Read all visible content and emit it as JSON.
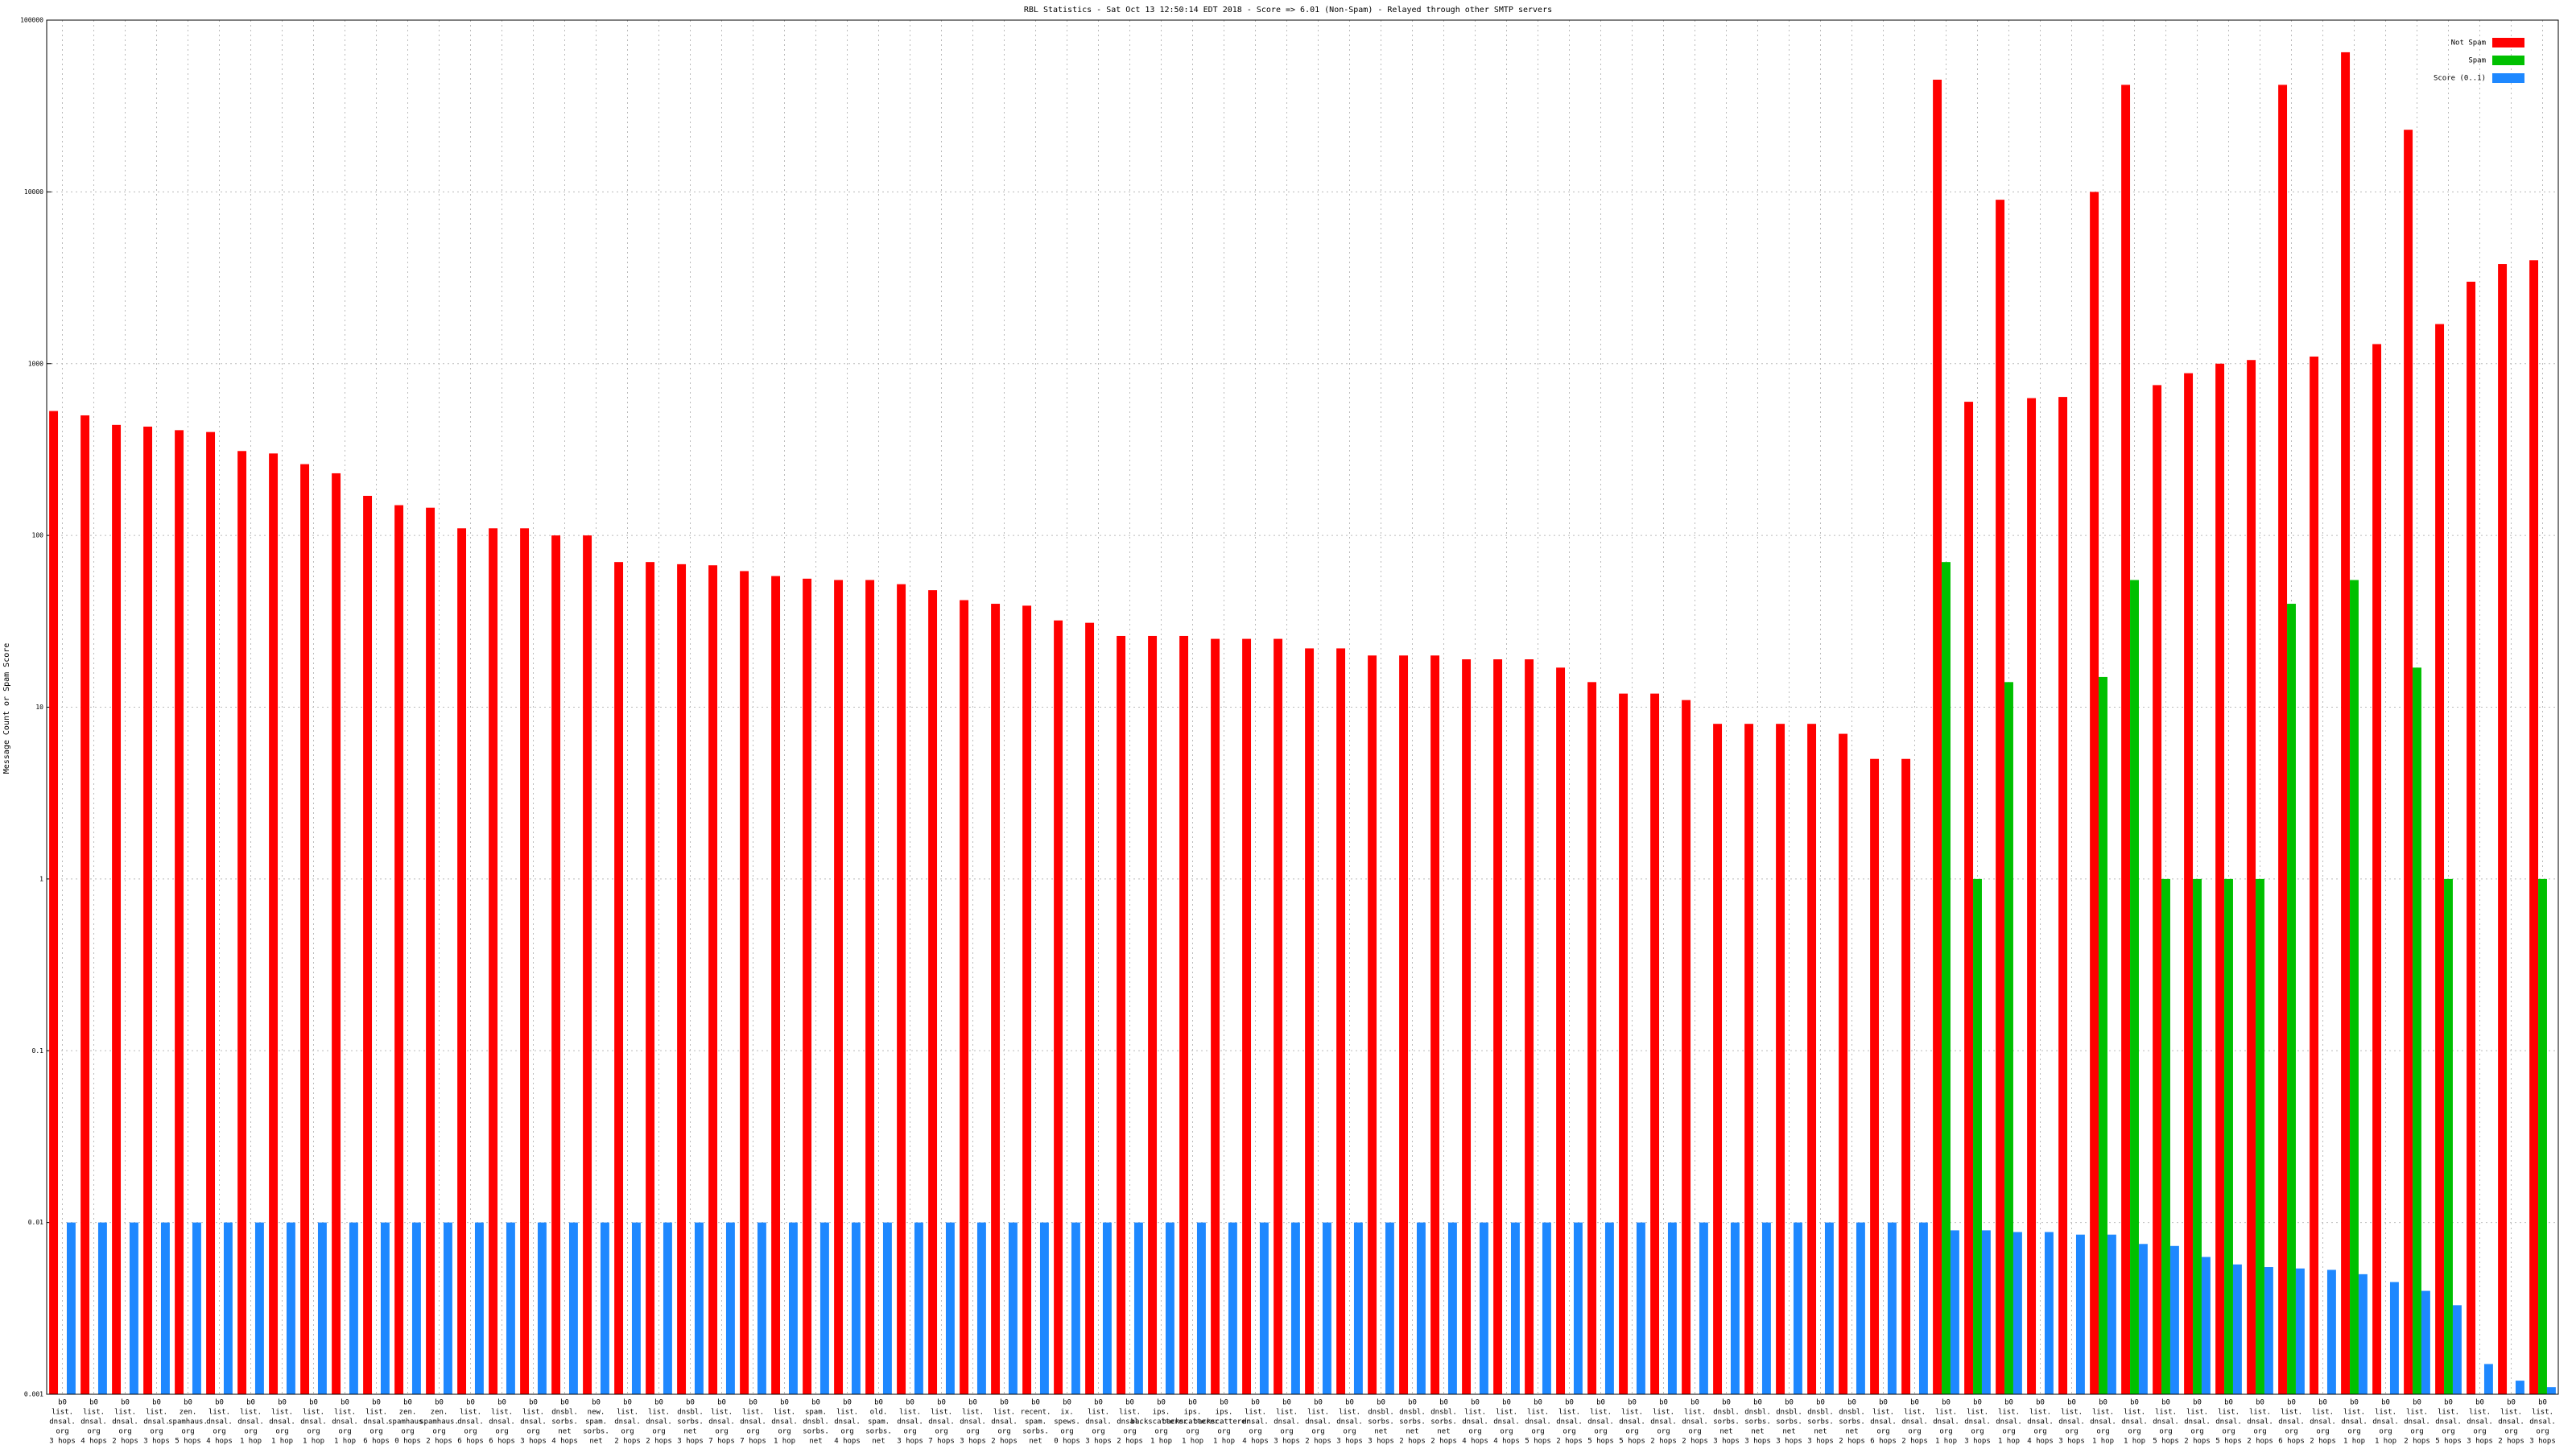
{
  "chart_data": {
    "type": "bar",
    "title": "RBL Statistics - Sat Oct 13 12:50:14 EDT 2018 - Score => 6.01 (Non-Spam) - Relayed through other SMTP servers",
    "y_label": "Message Count or Spam Score",
    "log_scale": true,
    "grid": true,
    "legend": "top-right",
    "ylim": [
      0.001,
      100000
    ],
    "yticks": [
      0.001,
      0.01,
      0.1,
      1,
      10,
      100,
      1000,
      10000,
      100000
    ],
    "categories": [
      [
        "b0",
        "list.",
        "dnsal.",
        "org",
        "3 hops"
      ],
      [
        "b0",
        "list.",
        "dnsal.",
        "org",
        "4 hops"
      ],
      [
        "b0",
        "list.",
        "dnsal.",
        "org",
        "2 hops"
      ],
      [
        "b0",
        "list.",
        "dnsal.",
        "org",
        "3 hops"
      ],
      [
        "b0",
        "zen.",
        "spamhaus.",
        "org",
        "5 hops"
      ],
      [
        "b0",
        "list.",
        "dnsal.",
        "org",
        "4 hops"
      ],
      [
        "b0",
        "list.",
        "dnsal.",
        "org",
        "1 hop"
      ],
      [
        "b0",
        "list.",
        "dnsal.",
        "org",
        "1 hop"
      ],
      [
        "b0",
        "list.",
        "dnsal.",
        "org",
        "1 hop"
      ],
      [
        "b0",
        "list.",
        "dnsal.",
        "org",
        "1 hop"
      ],
      [
        "b0",
        "list.",
        "dnsal.",
        "org",
        "6 hops"
      ],
      [
        "b0",
        "zen.",
        "spamhaus.",
        "org",
        "0 hops"
      ],
      [
        "b0",
        "zen.",
        "spamhaus.",
        "org",
        "2 hops"
      ],
      [
        "b0",
        "list.",
        "dnsal.",
        "org",
        "6 hops"
      ],
      [
        "b0",
        "list.",
        "dnsal.",
        "org",
        "6 hops"
      ],
      [
        "b0",
        "list.",
        "dnsal.",
        "org",
        "3 hops"
      ],
      [
        "b0",
        "dnsbl.",
        "sorbs.",
        "net",
        "4 hops"
      ],
      [
        "b0",
        "new.",
        "spam.",
        "sorbs.",
        "net"
      ],
      [
        "b0",
        "list.",
        "dnsal.",
        "org",
        "2 hops"
      ],
      [
        "b0",
        "list.",
        "dnsal.",
        "org",
        "2 hops"
      ],
      [
        "b0",
        "dnsbl.",
        "sorbs.",
        "net",
        "3 hops"
      ],
      [
        "b0",
        "list.",
        "dnsal.",
        "org",
        "7 hops"
      ],
      [
        "b0",
        "list.",
        "dnsal.",
        "org",
        "7 hops"
      ],
      [
        "b0",
        "list.",
        "dnsal.",
        "org",
        "1 hop"
      ],
      [
        "b0",
        "spam.",
        "dnsbl.",
        "sorbs.",
        "net"
      ],
      [
        "b0",
        "list.",
        "dnsal.",
        "org",
        "4 hops"
      ],
      [
        "b0",
        "old.",
        "spam.",
        "sorbs.",
        "net"
      ],
      [
        "b0",
        "list.",
        "dnsal.",
        "org",
        "3 hops"
      ],
      [
        "b0",
        "list.",
        "dnsal.",
        "org",
        "7 hops"
      ],
      [
        "b0",
        "list.",
        "dnsal.",
        "org",
        "3 hops"
      ],
      [
        "b0",
        "list.",
        "dnsal.",
        "org",
        "2 hops"
      ],
      [
        "b0",
        "recent.",
        "spam.",
        "sorbs.",
        "net"
      ],
      [
        "b0",
        "ix.",
        "spews.",
        "org",
        "0 hops"
      ],
      [
        "b0",
        "list.",
        "dnsal.",
        "org",
        "3 hops"
      ],
      [
        "b0",
        "list.",
        "dnsal.",
        "org",
        "2 hops"
      ],
      [
        "b0",
        "ips.",
        "backscatterer.",
        "org",
        "1 hop"
      ],
      [
        "b0",
        "ips.",
        "backscatterer.",
        "org",
        "1 hop"
      ],
      [
        "b0",
        "ips.",
        "backscatterer.",
        "org",
        "1 hop"
      ],
      [
        "b0",
        "list.",
        "dnsal.",
        "org",
        "4 hops"
      ],
      [
        "b0",
        "list.",
        "dnsal.",
        "org",
        "3 hops"
      ],
      [
        "b0",
        "list.",
        "dnsal.",
        "org",
        "2 hops"
      ],
      [
        "b0",
        "list.",
        "dnsal.",
        "org",
        "3 hops"
      ],
      [
        "b0",
        "dnsbl.",
        "sorbs.",
        "net",
        "3 hops"
      ],
      [
        "b0",
        "dnsbl.",
        "sorbs.",
        "net",
        "2 hops"
      ],
      [
        "b0",
        "dnsbl.",
        "sorbs.",
        "net",
        "2 hops"
      ],
      [
        "b0",
        "list.",
        "dnsal.",
        "org",
        "4 hops"
      ],
      [
        "b0",
        "list.",
        "dnsal.",
        "org",
        "4 hops"
      ],
      [
        "b0",
        "list.",
        "dnsal.",
        "org",
        "5 hops"
      ],
      [
        "b0",
        "list.",
        "dnsal.",
        "org",
        "2 hops"
      ],
      [
        "b0",
        "list.",
        "dnsal.",
        "org",
        "5 hops"
      ],
      [
        "b0",
        "list.",
        "dnsal.",
        "org",
        "5 hops"
      ],
      [
        "b0",
        "list.",
        "dnsal.",
        "org",
        "2 hops"
      ],
      [
        "b0",
        "list.",
        "dnsal.",
        "org",
        "2 hops"
      ],
      [
        "b0",
        "dnsbl.",
        "sorbs.",
        "net",
        "3 hops"
      ],
      [
        "b0",
        "dnsbl.",
        "sorbs.",
        "net",
        "3 hops"
      ],
      [
        "b0",
        "dnsbl.",
        "sorbs.",
        "net",
        "3 hops"
      ],
      [
        "b0",
        "dnsbl.",
        "sorbs.",
        "net",
        "3 hops"
      ],
      [
        "b0",
        "dnsbl.",
        "sorbs.",
        "net",
        "2 hops"
      ],
      [
        "b0",
        "list.",
        "dnsal.",
        "org",
        "6 hops"
      ],
      [
        "b0",
        "list.",
        "dnsal.",
        "org",
        "2 hops"
      ],
      [
        "b0",
        "list.",
        "dnsal.",
        "org",
        "1 hop"
      ],
      [
        "b0",
        "list.",
        "dnsal.",
        "org",
        "3 hops"
      ],
      [
        "b0",
        "list.",
        "dnsal.",
        "org",
        "1 hop"
      ],
      [
        "b0",
        "list.",
        "dnsal.",
        "org",
        "4 hops"
      ],
      [
        "b0",
        "list.",
        "dnsal.",
        "org",
        "3 hops"
      ],
      [
        "b0",
        "list.",
        "dnsal.",
        "org",
        "1 hop"
      ],
      [
        "b0",
        "list.",
        "dnsal.",
        "org",
        "1 hop"
      ],
      [
        "b0",
        "list.",
        "dnsal.",
        "org",
        "5 hops"
      ],
      [
        "b0",
        "list.",
        "dnsal.",
        "org",
        "2 hops"
      ],
      [
        "b0",
        "list.",
        "dnsal.",
        "org",
        "5 hops"
      ],
      [
        "b0",
        "list.",
        "dnsal.",
        "org",
        "2 hops"
      ],
      [
        "b0",
        "list.",
        "dnsal.",
        "org",
        "6 hops"
      ],
      [
        "b0",
        "list.",
        "dnsal.",
        "org",
        "2 hops"
      ],
      [
        "b0",
        "list.",
        "dnsal.",
        "org",
        "1 hop"
      ],
      [
        "b0",
        "list.",
        "dnsal.",
        "org",
        "1 hop"
      ],
      [
        "b0",
        "list.",
        "dnsal.",
        "org",
        "2 hops"
      ],
      [
        "b0",
        "list.",
        "dnsal.",
        "org",
        "5 hops"
      ],
      [
        "b0",
        "list.",
        "dnsal.",
        "org",
        "3 hops"
      ],
      [
        "b0",
        "list.",
        "dnsal.",
        "org",
        "2 hops"
      ],
      [
        "b0",
        "list.",
        "dnsal.",
        "org",
        "3 hops"
      ]
    ],
    "series": [
      {
        "name": "Not Spam",
        "color": "#ff0000",
        "values": [
          530,
          500,
          440,
          430,
          410,
          400,
          310,
          300,
          260,
          230,
          170,
          150,
          145,
          110,
          110,
          110,
          100,
          100,
          70,
          70,
          68,
          67,
          62,
          58,
          56,
          55,
          55,
          52,
          48,
          42,
          40,
          39,
          32,
          31,
          26,
          26,
          26,
          25,
          25,
          25,
          22,
          22,
          20,
          20,
          20,
          19,
          19,
          19,
          17,
          14,
          12,
          12,
          11,
          8,
          8,
          8,
          8,
          7,
          5,
          5,
          45000,
          600,
          9000,
          630,
          640,
          10000,
          42000,
          750,
          880,
          1000,
          1050,
          42000,
          1100,
          65000,
          1300,
          23000,
          1700,
          3000,
          3800,
          4000
        ]
      },
      {
        "name": "Spam",
        "color": "#00c000",
        "values": [
          null,
          null,
          null,
          null,
          null,
          null,
          null,
          null,
          null,
          null,
          null,
          null,
          null,
          null,
          null,
          null,
          null,
          null,
          null,
          null,
          null,
          null,
          null,
          null,
          null,
          null,
          null,
          null,
          null,
          null,
          null,
          null,
          null,
          null,
          null,
          null,
          null,
          null,
          null,
          null,
          null,
          null,
          null,
          null,
          null,
          null,
          null,
          null,
          null,
          null,
          null,
          null,
          null,
          null,
          null,
          null,
          null,
          null,
          null,
          null,
          70,
          1,
          14,
          null,
          null,
          15,
          55,
          1,
          1,
          1,
          1,
          40,
          null,
          55,
          null,
          17,
          1,
          null,
          null,
          1
        ]
      },
      {
        "name": "Score (0..1)",
        "color": "#1e88ff",
        "values": [
          0.01,
          0.01,
          0.01,
          0.01,
          0.01,
          0.01,
          0.01,
          0.01,
          0.01,
          0.01,
          0.01,
          0.01,
          0.01,
          0.01,
          0.01,
          0.01,
          0.01,
          0.01,
          0.01,
          0.01,
          0.01,
          0.01,
          0.01,
          0.01,
          0.01,
          0.01,
          0.01,
          0.01,
          0.01,
          0.01,
          0.01,
          0.01,
          0.01,
          0.01,
          0.01,
          0.01,
          0.01,
          0.01,
          0.01,
          0.01,
          0.01,
          0.01,
          0.01,
          0.01,
          0.01,
          0.01,
          0.01,
          0.01,
          0.01,
          0.01,
          0.01,
          0.01,
          0.01,
          0.01,
          0.01,
          0.01,
          0.01,
          0.01,
          0.01,
          0.01,
          0.009,
          0.009,
          0.0088,
          0.0088,
          0.0085,
          0.0085,
          0.0075,
          0.0073,
          0.0063,
          0.0057,
          0.0055,
          0.0054,
          0.0053,
          0.005,
          0.0045,
          0.004,
          0.0033,
          0.0015,
          0.0012,
          0.0011
        ]
      }
    ]
  }
}
